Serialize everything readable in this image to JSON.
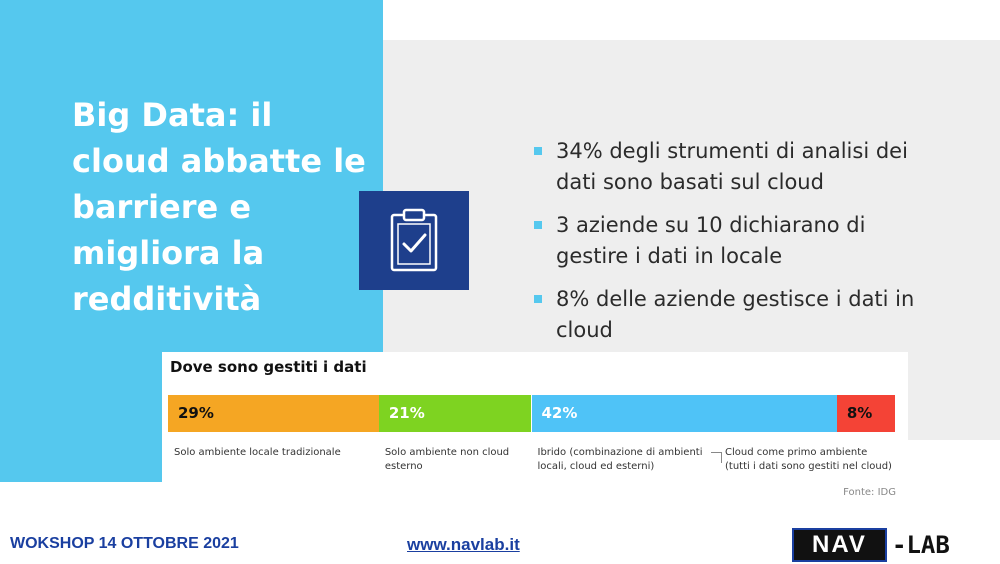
{
  "slide": {
    "title": "Big Data: il\ncloud abbatte le\nbarriere e\nmigliora la\nredditività",
    "bullets": [
      "34% degli strumenti di analisi dei dati sono basati sul cloud",
      "3 aziende su 10 dichiarano di gestire i dati in locale",
      "8% delle aziende gestisce i dati in cloud"
    ],
    "icon": "clipboard-check-icon"
  },
  "chart_data": {
    "type": "bar",
    "orientation": "horizontal-stacked",
    "title": "Dove sono gestiti i dati",
    "categories": [
      "Solo ambiente locale tradizionale",
      "Solo ambiente non cloud esterno",
      "Ibrido (combinazione di ambienti locali, cloud ed esterni)",
      "Cloud come primo ambiente (tutti i dati sono gestiti nel cloud)"
    ],
    "values": [
      29,
      21,
      42,
      8
    ],
    "value_labels": [
      "29%",
      "21%",
      "42%",
      "8%"
    ],
    "colors": [
      "#f5a623",
      "#7ed321",
      "#4fc3f7",
      "#f44336"
    ],
    "unit": "%",
    "source": "Fonte: IDG"
  },
  "footer": {
    "event": "WOKSHOP  14 OTTOBRE 2021",
    "link": "www.navlab.it",
    "logo_left": "NAV",
    "logo_right": "-LAB"
  }
}
